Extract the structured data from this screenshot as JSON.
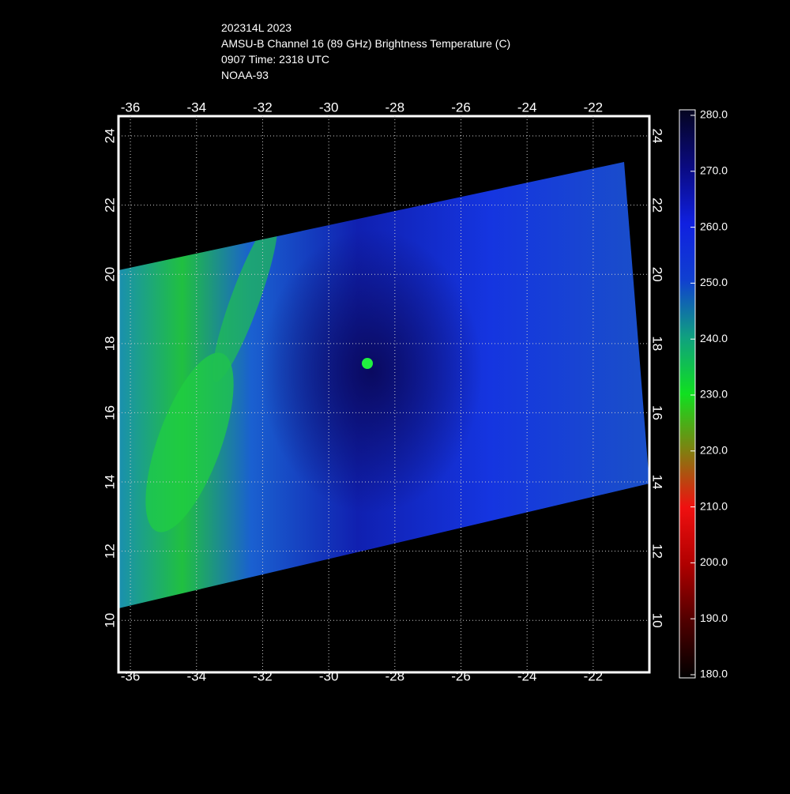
{
  "header": {
    "lines": [
      "202314L 2023",
      "AMSU-B Channel 16 (89 GHz) Brightness Temperature (C)",
      "0907 Time: 2318 UTC",
      "NOAA-93"
    ]
  },
  "map": {
    "xlim": [
      -36.36,
      -20.3
    ],
    "ylim": [
      8.5,
      24.57
    ],
    "xticks": [
      -36,
      -34,
      -32,
      -30,
      -28,
      -26,
      -24,
      -22
    ],
    "yticks": [
      10,
      12,
      14,
      16,
      18,
      20,
      22,
      24
    ],
    "grid": true
  },
  "colorbar": {
    "lim": [
      180,
      280
    ],
    "ticks": [
      {
        "value": 280,
        "label": "280.0"
      },
      {
        "value": 270,
        "label": "270.0"
      },
      {
        "value": 260,
        "label": "260.0"
      },
      {
        "value": 250,
        "label": "250.0"
      },
      {
        "value": 240,
        "label": "240.0"
      },
      {
        "value": 230,
        "label": "230.0"
      },
      {
        "value": 220,
        "label": "220.0"
      },
      {
        "value": 210,
        "label": "210.0"
      },
      {
        "value": 200,
        "label": "200.0"
      },
      {
        "value": 190,
        "label": "190.0"
      },
      {
        "value": 180,
        "label": "180.0"
      }
    ]
  }
}
